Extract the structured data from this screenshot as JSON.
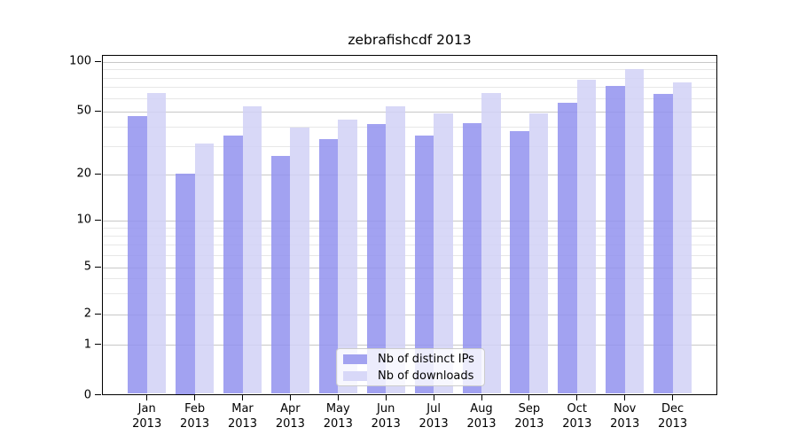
{
  "title": "zebrafishcdf 2013",
  "chart_data": {
    "type": "bar",
    "title": "zebrafishcdf 2013",
    "categories": [
      "Jan",
      "Feb",
      "Mar",
      "Apr",
      "May",
      "Jun",
      "Jul",
      "Aug",
      "Sep",
      "Oct",
      "Nov",
      "Dec"
    ],
    "x_year_label": "2013",
    "series": [
      {
        "name": "Nb of distinct IPs",
        "color": "#a2a2f0",
        "values": [
          46,
          20,
          35,
          26,
          33,
          41,
          35,
          42,
          37,
          56,
          71,
          63
        ]
      },
      {
        "name": "Nb of downloads",
        "color": "#d8d8f8",
        "values": [
          64,
          31,
          53,
          39,
          44,
          53,
          48,
          64,
          48,
          77,
          90,
          74
        ]
      }
    ],
    "y_axis": {
      "scale": "symlog",
      "ticks": [
        0,
        1,
        2,
        5,
        10,
        20,
        50,
        100
      ],
      "minor_ticks": [
        3,
        4,
        6,
        7,
        8,
        9,
        30,
        40,
        60,
        70,
        80,
        90
      ],
      "range": [
        0,
        110
      ],
      "grid": true
    },
    "legend": {
      "position": "lower center",
      "entries": [
        "Nb of distinct IPs",
        "Nb of downloads"
      ]
    }
  }
}
